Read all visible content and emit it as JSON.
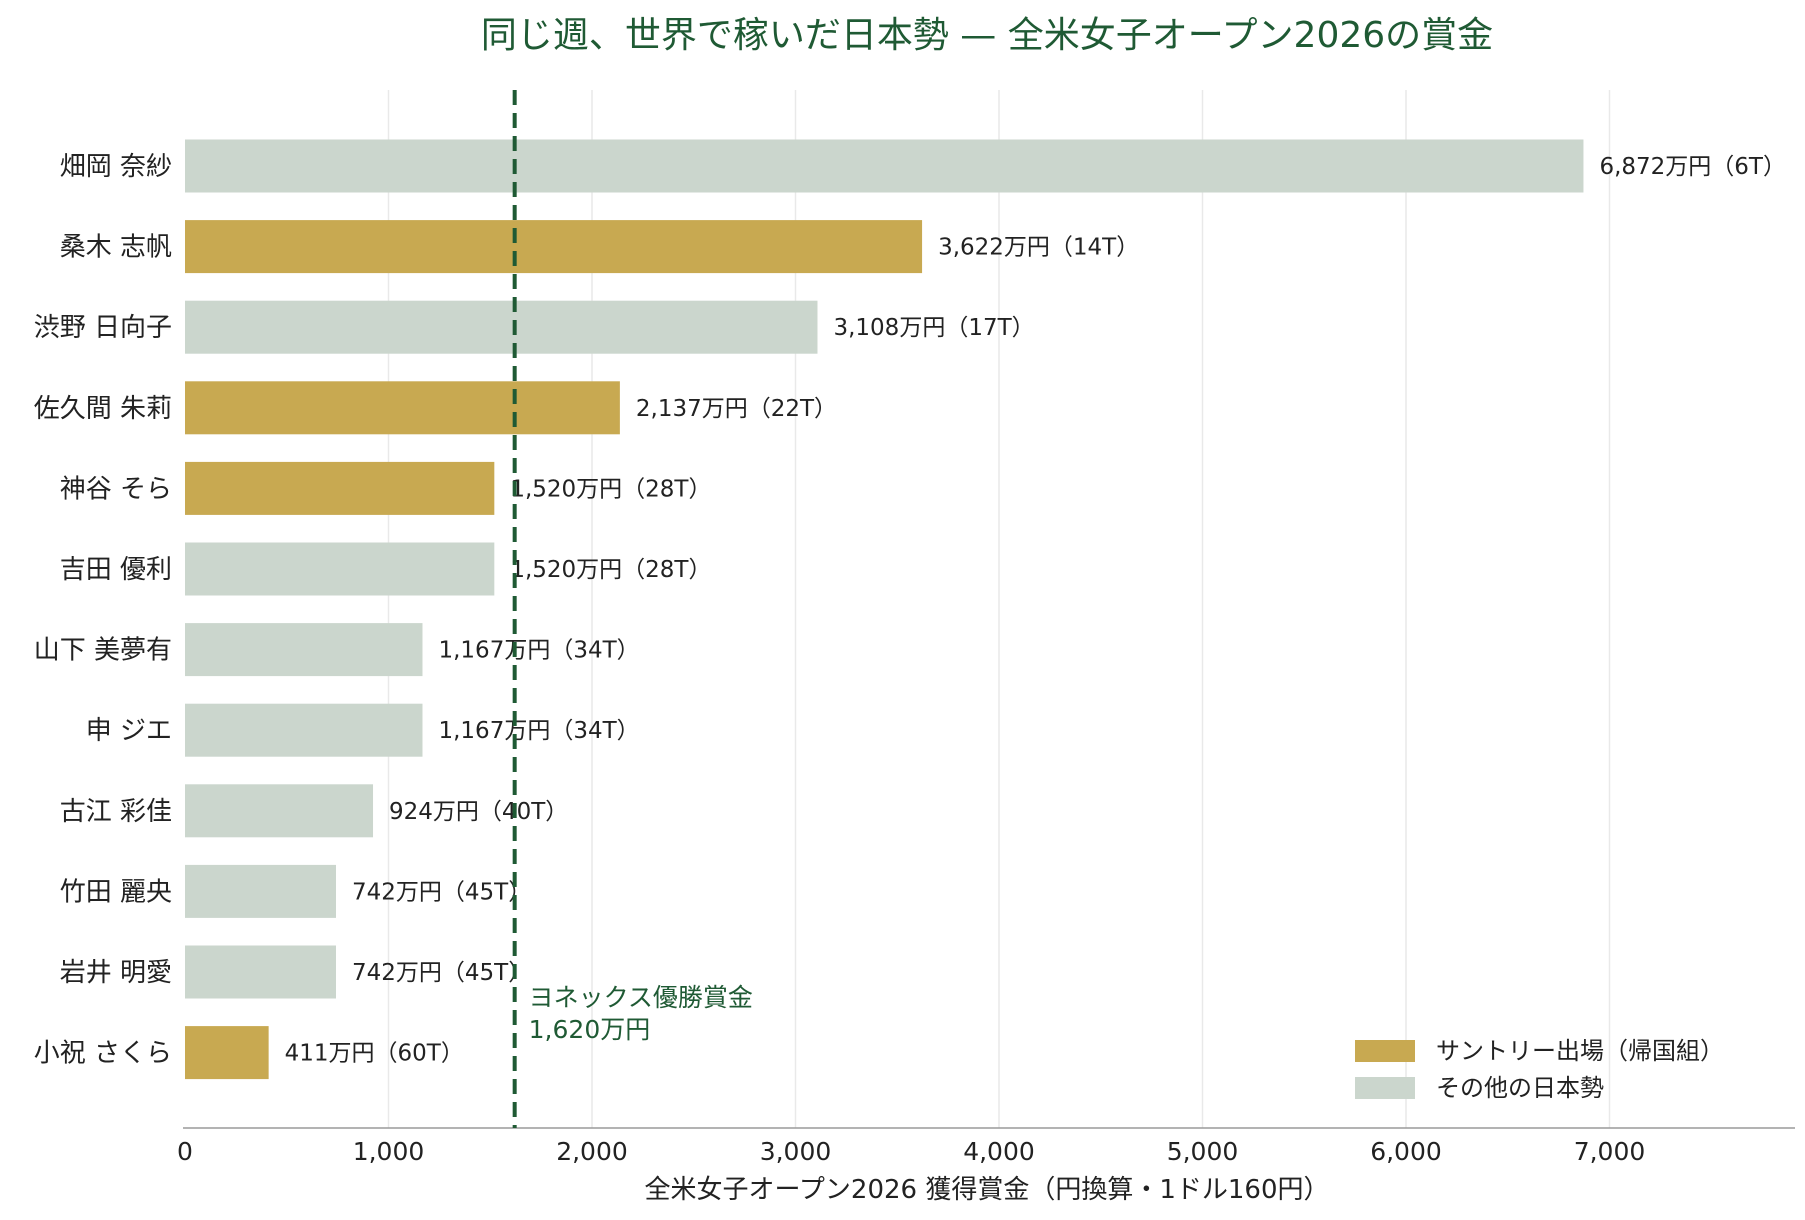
{
  "chart_data": {
    "type": "bar",
    "orientation": "horizontal",
    "title": "同じ週、世界で稼いだ日本勢 — 全米女子オープン2026の賞金",
    "xlabel": "全米女子オープン2026 獲得賞金（円換算・1ドル160円）",
    "ylabel": "",
    "xlim": [
      0,
      7850
    ],
    "xticks": [
      0,
      1000,
      2000,
      3000,
      4000,
      5000,
      6000,
      7000
    ],
    "xtick_labels": [
      "0",
      "1,000",
      "2,000",
      "3,000",
      "4,000",
      "5,000",
      "6,000",
      "7,000"
    ],
    "grid": "vertical",
    "categories": [
      "畑岡 奈紗",
      "桑木 志帆",
      "渋野 日向子",
      "佐久間 朱莉",
      "神谷 そら",
      "吉田 優利",
      "山下 美夢有",
      "申 ジエ",
      "古江 彩佳",
      "竹田 麗央",
      "岩井 明愛",
      "小祝 さくら"
    ],
    "values": [
      6872,
      3622,
      3108,
      2137,
      1520,
      1520,
      1167,
      1167,
      924,
      742,
      742,
      411
    ],
    "groups": [
      "other",
      "suntory",
      "other",
      "suntory",
      "suntory",
      "other",
      "other",
      "other",
      "other",
      "other",
      "other",
      "suntory"
    ],
    "value_labels": [
      "6,872万円（6T）",
      "3,622万円（14T）",
      "3,108万円（17T）",
      "2,137万円（22T）",
      "1,520万円（28T）",
      "1,520万円（28T）",
      "1,167万円（34T）",
      "1,167万円（34T）",
      "924万円（40T）",
      "742万円（45T）",
      "742万円（45T）",
      "411万円（60T）"
    ],
    "reference_line": {
      "value": 1620,
      "label_line1": "ヨネックス優勝賞金",
      "label_line2": "1,620万円",
      "color": "#1f5a34"
    },
    "legend": {
      "placement": "bottom-right",
      "entries": [
        {
          "key": "suntory",
          "label": "サントリー出場（帰国組）",
          "color": "#c8a951"
        },
        {
          "key": "other",
          "label": "その他の日本勢",
          "color": "#cbd6cd"
        }
      ]
    }
  }
}
